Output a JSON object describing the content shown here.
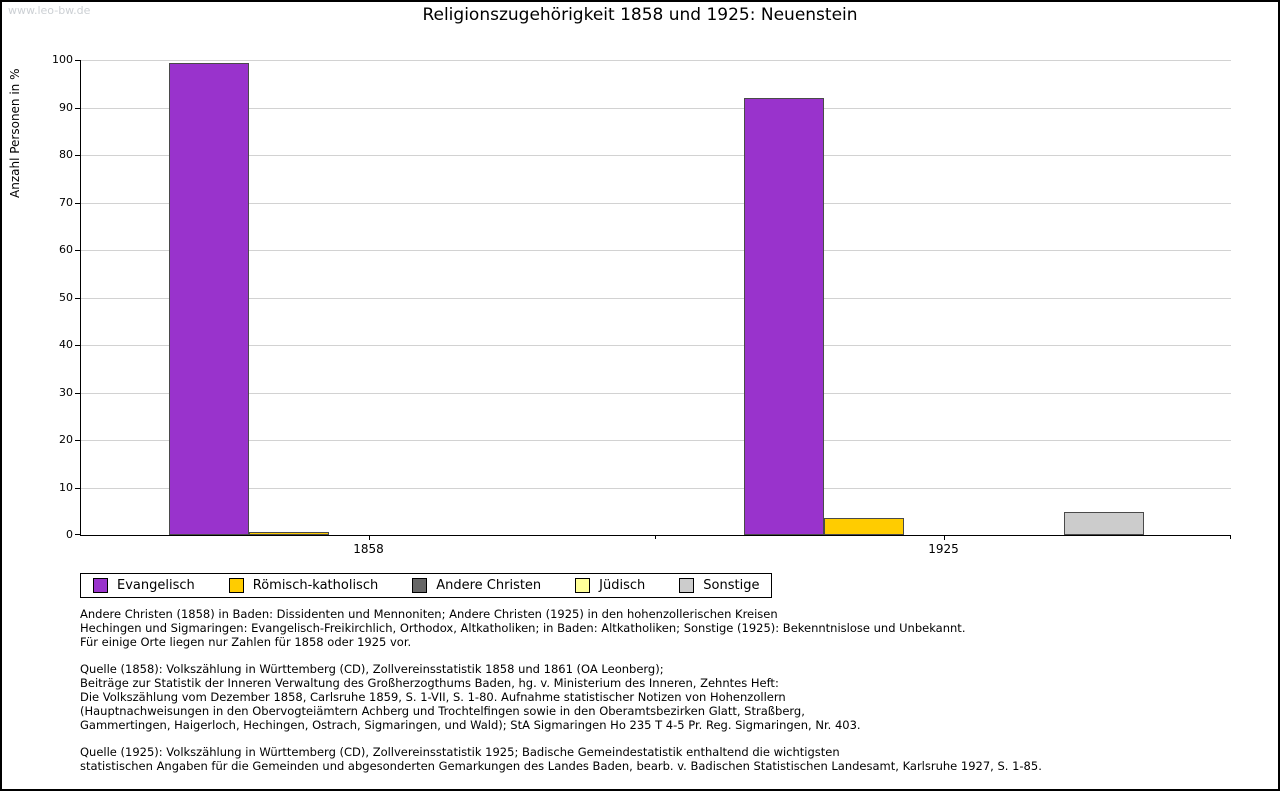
{
  "watermark": "www.leo-bw.de",
  "title": "Religionszugehörigkeit 1858 und 1925: Neuenstein",
  "chart_data": {
    "type": "bar",
    "title": "Religionszugehörigkeit 1858 und 1925: Neuenstein",
    "xlabel": "",
    "ylabel": "Anzahl Personen in %",
    "ylim": [
      0,
      100
    ],
    "ytick_step": 10,
    "grid": true,
    "legend_position": "bottom",
    "categories": [
      "1858",
      "1925"
    ],
    "series": [
      {
        "name": "Evangelisch",
        "color": "#9933cc",
        "values": [
          99.3,
          91.9
        ]
      },
      {
        "name": "Römisch-katholisch",
        "color": "#ffcc00",
        "values": [
          0.7,
          3.5
        ]
      },
      {
        "name": "Andere Christen",
        "color": "#666666",
        "values": [
          0,
          0
        ]
      },
      {
        "name": "Jüdisch",
        "color": "#ffff99",
        "values": [
          0,
          0
        ]
      },
      {
        "name": "Sonstige",
        "color": "#cccccc",
        "values": [
          0,
          4.9
        ]
      }
    ]
  },
  "footnotes": [
    "Andere Christen (1858) in Baden: Dissidenten und Mennoniten; Andere Christen (1925) in den hohenzollerischen Kreisen\nHechingen und Sigmaringen: Evangelisch-Freikirchlich, Orthodox, Altkatholiken; in Baden: Altkatholiken; Sonstige (1925): Bekenntnislose und Unbekannt.\nFür einige Orte liegen nur Zahlen für 1858 oder 1925 vor.",
    "Quelle (1858): Volkszählung in Württemberg (CD), Zollvereinsstatistik 1858 und 1861 (OA Leonberg);\nBeiträge zur Statistik der Inneren Verwaltung des Großherzogthums Baden, hg. v. Ministerium des Inneren, Zehntes Heft:\nDie Volkszählung vom Dezember 1858, Carlsruhe 1859, S. 1-VII, S. 1-80. Aufnahme statistischer Notizen von Hohenzollern\n(Hauptnachweisungen in den Obervogteiämtern Achberg und Trochtelfingen sowie in den Oberamtsbezirken Glatt, Straßberg,\nGammertingen, Haigerloch, Hechingen, Ostrach, Sigmaringen, und Wald); StA Sigmaringen Ho 235 T 4-5 Pr. Reg. Sigmaringen, Nr. 403.",
    "Quelle (1925): Volkszählung in Württemberg (CD), Zollvereinsstatistik 1925; Badische Gemeindestatistik enthaltend die wichtigsten\nstatistischen Angaben für die Gemeinden und abgesonderten Gemarkungen des Landes Baden, bearb. v. Badischen Statistischen Landesamt, Karlsruhe 1927, S. 1-85."
  ]
}
